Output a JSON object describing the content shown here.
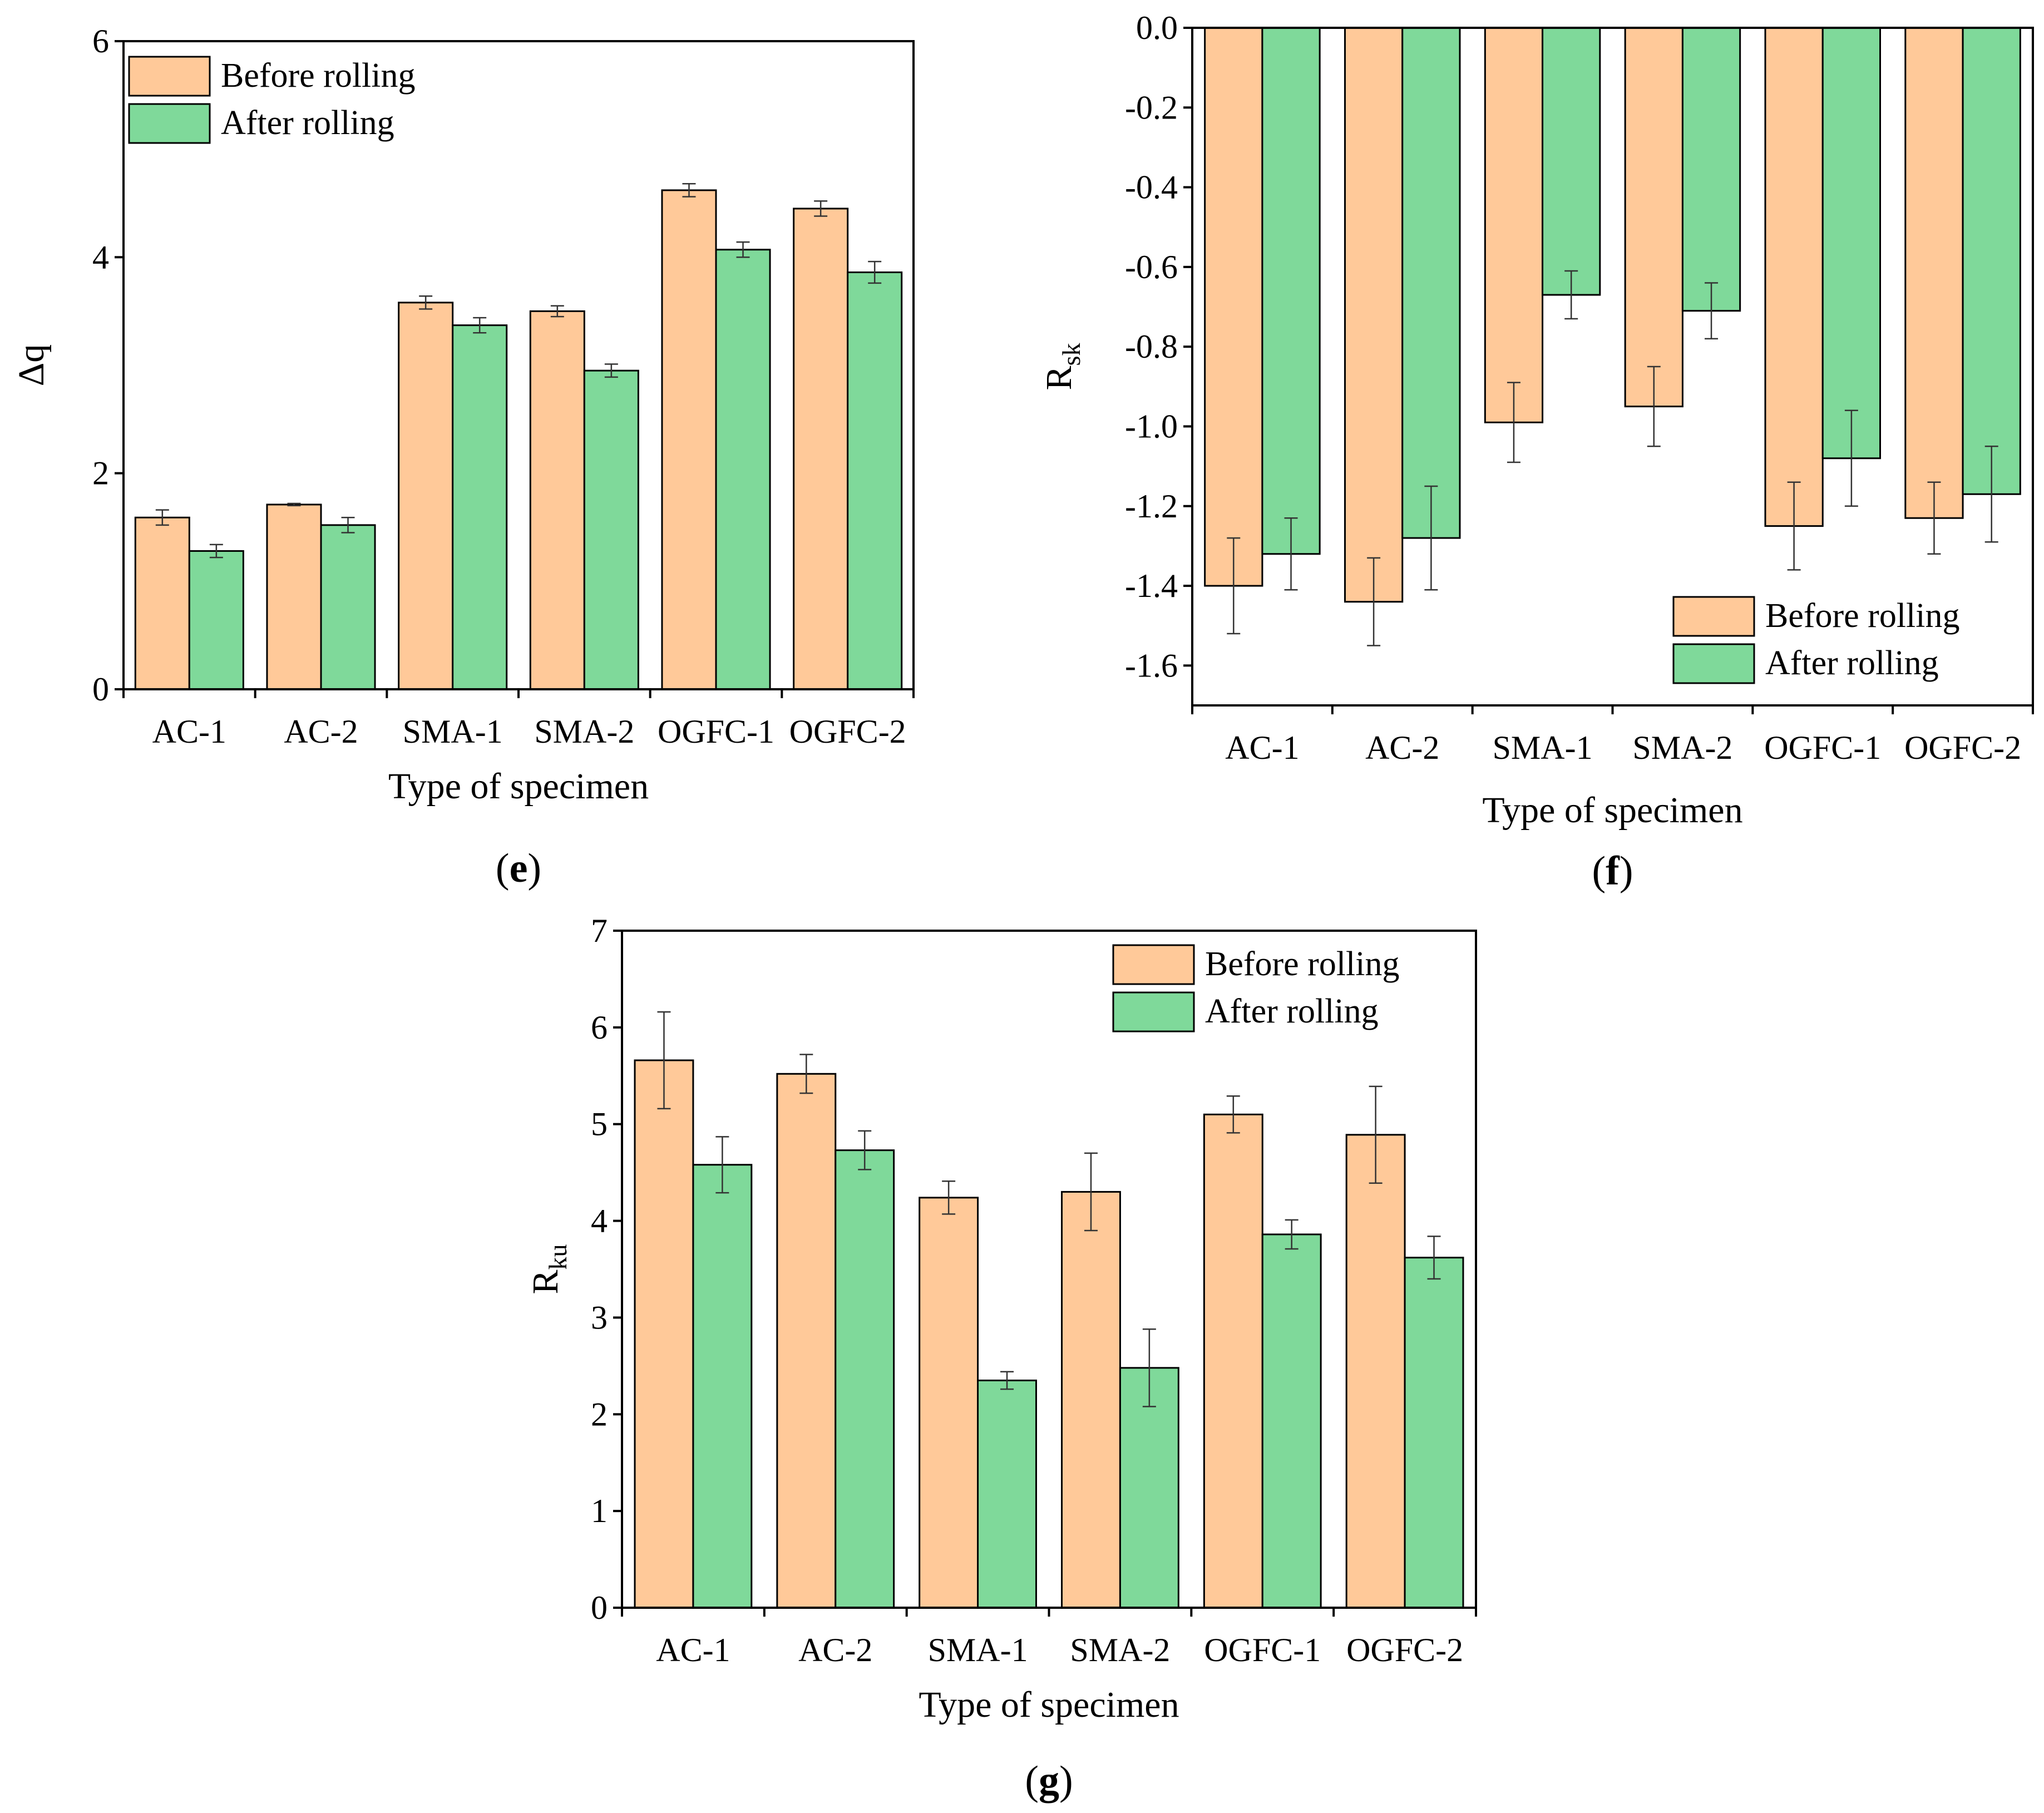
{
  "chart_data": [
    {
      "id": "e",
      "panel_label": "e",
      "type": "bar",
      "categories": [
        "AC-1",
        "AC-2",
        "SMA-1",
        "SMA-2",
        "OGFC-1",
        "OGFC-2"
      ],
      "series": [
        {
          "name": "Before rolling",
          "color": "#FFC999",
          "values": [
            1.59,
            1.71,
            3.58,
            3.5,
            4.62,
            4.45
          ],
          "errors": [
            0.07,
            0.01,
            0.06,
            0.05,
            0.06,
            0.07
          ]
        },
        {
          "name": "After rolling",
          "color": "#7FD99A",
          "values": [
            1.28,
            1.52,
            3.37,
            2.95,
            4.07,
            3.86
          ],
          "errors": [
            0.06,
            0.07,
            0.07,
            0.06,
            0.07,
            0.1
          ]
        }
      ],
      "xlabel": "Type of specimen",
      "ylabel": "Δq",
      "ylim": [
        0,
        6
      ],
      "yticks": [
        0,
        2,
        4,
        6
      ],
      "ytick_labels": [
        "0",
        "2",
        "4",
        "6"
      ],
      "legend": "top-left",
      "grid": false
    },
    {
      "id": "f",
      "panel_label": "f",
      "type": "bar",
      "categories": [
        "AC-1",
        "AC-2",
        "SMA-1",
        "SMA-2",
        "OGFC-1",
        "OGFC-2"
      ],
      "series": [
        {
          "name": "Before rolling",
          "color": "#FFC999",
          "values": [
            -1.4,
            -1.44,
            -0.99,
            -0.95,
            -1.25,
            -1.23
          ],
          "errors": [
            0.12,
            0.11,
            0.1,
            0.1,
            0.11,
            0.09
          ]
        },
        {
          "name": "After rolling",
          "color": "#7FD99A",
          "values": [
            -1.32,
            -1.28,
            -0.67,
            -0.71,
            -1.08,
            -1.17
          ],
          "errors": [
            0.09,
            0.13,
            0.06,
            0.07,
            0.12,
            0.12
          ]
        }
      ],
      "xlabel": "Type of specimen",
      "ylabel_main": "R",
      "ylabel_sub": "sk",
      "ylim": [
        -1.7,
        0
      ],
      "yticks": [
        0,
        -0.2,
        -0.4,
        -0.6,
        -0.8,
        -1.0,
        -1.2,
        -1.4,
        -1.6
      ],
      "ytick_labels": [
        "0.0",
        "-0.2",
        "-0.4",
        "-0.6",
        "-0.8",
        "-1.0",
        "-1.2",
        "-1.4",
        "-1.6"
      ],
      "legend": "bottom-right",
      "grid": false
    },
    {
      "id": "g",
      "panel_label": "g",
      "type": "bar",
      "categories": [
        "AC-1",
        "AC-2",
        "SMA-1",
        "SMA-2",
        "OGFC-1",
        "OGFC-2"
      ],
      "series": [
        {
          "name": "Before rolling",
          "color": "#FFC999",
          "values": [
            5.66,
            5.52,
            4.24,
            4.3,
            5.1,
            4.89
          ],
          "errors": [
            0.5,
            0.2,
            0.17,
            0.4,
            0.19,
            0.5
          ]
        },
        {
          "name": "After rolling",
          "color": "#7FD99A",
          "values": [
            4.58,
            4.73,
            2.35,
            2.48,
            3.86,
            3.62
          ],
          "errors": [
            0.29,
            0.2,
            0.09,
            0.4,
            0.15,
            0.22
          ]
        }
      ],
      "xlabel": "Type of specimen",
      "ylabel_main": "R",
      "ylabel_sub": "ku",
      "ylim": [
        0,
        7
      ],
      "yticks": [
        0,
        1,
        2,
        3,
        4,
        5,
        6,
        7
      ],
      "ytick_labels": [
        "0",
        "1",
        "2",
        "3",
        "4",
        "5",
        "6",
        "7"
      ],
      "legend": "top-right",
      "grid": false
    }
  ]
}
